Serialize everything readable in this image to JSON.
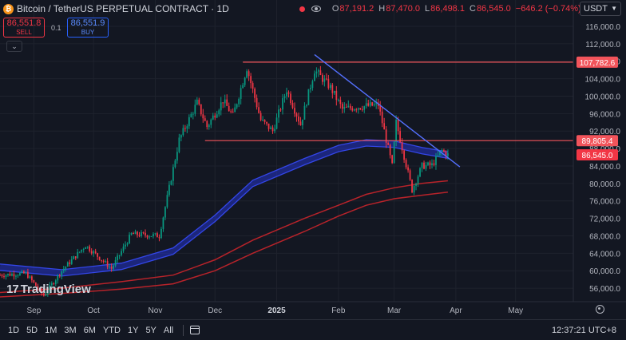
{
  "header": {
    "title": "Bitcoin / TetherUS PERPETUAL CONTRACT · 1D",
    "ohlc": [
      {
        "k": "O",
        "v": "87,191.2"
      },
      {
        "k": "H",
        "v": "87,470.0"
      },
      {
        "k": "L",
        "v": "86,498.1"
      },
      {
        "k": "C",
        "v": "86,545.0"
      },
      {
        "k": "",
        "v": "−646.2 (−0.74%)"
      }
    ]
  },
  "trade": {
    "sell_price": "86,551.8",
    "sell_label": "SELL",
    "spread": "0.1",
    "buy_price": "86,551.9",
    "buy_label": "BUY"
  },
  "currency": "USDT",
  "watermark": "TradingView",
  "timeframes": [
    "1D",
    "5D",
    "1M",
    "3M",
    "6M",
    "YTD",
    "1Y",
    "5Y",
    "All"
  ],
  "clock": "12:37:21 UTC+8",
  "colors": {
    "up": "#089981",
    "down": "#f23645",
    "ema_blue": "#2433c7",
    "ema_red": "#b8232a",
    "trendline": "#5470ff",
    "level": "#f2545b",
    "background": "#131722",
    "text": "#b2b5be"
  },
  "chart_data": {
    "type": "candlestick",
    "y_axis": {
      "ticks": [
        56000,
        60000,
        64000,
        68000,
        72000,
        76000,
        80000,
        84000,
        88000,
        92000,
        96000,
        100000,
        104000,
        108000,
        112000,
        116000
      ],
      "tick_labels": [
        "56,000.0",
        "60,000.0",
        "64,000.0",
        "68,000.0",
        "72,000.0",
        "76,000.0",
        "80,000.0",
        "84,000.0",
        "88,000.0",
        "92,000.0",
        "96,000.0",
        "100,000.0",
        "104,000.0",
        "108,000.0",
        "112,000.0",
        "116,000.0"
      ],
      "ylim": [
        54000,
        118000
      ]
    },
    "x_axis": {
      "labels": [
        "Sep",
        "Oct",
        "Nov",
        "Dec",
        "2025",
        "Feb",
        "Mar",
        "Apr",
        "May"
      ],
      "dates": [
        "2024-09-01",
        "2024-10-01",
        "2024-11-01",
        "2024-12-01",
        "2025-01-01",
        "2025-02-01",
        "2025-03-01",
        "2025-04-01",
        "2025-05-01"
      ],
      "xlim": [
        "2024-08-15",
        "2025-05-30"
      ]
    },
    "price_labels": [
      {
        "value": 107782.6,
        "text": "107,782.6",
        "kind": "level"
      },
      {
        "value": 89805.4,
        "text": "89,805.4",
        "kind": "level"
      },
      {
        "value": 86545.0,
        "text": "86,545.0",
        "kind": "last"
      }
    ],
    "horizontal_levels": [
      {
        "value": 107782.6,
        "start": "2024-12-15",
        "end": "2025-05-30"
      },
      {
        "value": 89805.4,
        "start": "2024-11-26",
        "end": "2025-05-30"
      }
    ],
    "trendline": {
      "start": {
        "date": "2025-01-20",
        "value": 109500
      },
      "end": {
        "date": "2025-04-03",
        "value": 83800
      }
    },
    "anchors": [
      {
        "date": "2024-08-15",
        "value": 59000
      },
      {
        "date": "2024-08-28",
        "value": 59400
      },
      {
        "date": "2024-09-06",
        "value": 54300
      },
      {
        "date": "2024-09-15",
        "value": 60000
      },
      {
        "date": "2024-09-27",
        "value": 65800
      },
      {
        "date": "2024-10-10",
        "value": 60500
      },
      {
        "date": "2024-10-20",
        "value": 68400
      },
      {
        "date": "2024-11-03",
        "value": 68000
      },
      {
        "date": "2024-11-13",
        "value": 90000
      },
      {
        "date": "2024-11-22",
        "value": 98500
      },
      {
        "date": "2024-11-27",
        "value": 93000
      },
      {
        "date": "2024-12-05",
        "value": 99000
      },
      {
        "date": "2024-12-10",
        "value": 95500
      },
      {
        "date": "2024-12-17",
        "value": 106500
      },
      {
        "date": "2024-12-24",
        "value": 94500
      },
      {
        "date": "2024-12-30",
        "value": 92000
      },
      {
        "date": "2025-01-06",
        "value": 101500
      },
      {
        "date": "2025-01-13",
        "value": 93500
      },
      {
        "date": "2025-01-20",
        "value": 106000
      },
      {
        "date": "2025-01-28",
        "value": 102000
      },
      {
        "date": "2025-02-03",
        "value": 97000
      },
      {
        "date": "2025-02-10",
        "value": 97500
      },
      {
        "date": "2025-02-21",
        "value": 98000
      },
      {
        "date": "2025-02-28",
        "value": 84000
      },
      {
        "date": "2025-03-02",
        "value": 94000
      },
      {
        "date": "2025-03-10",
        "value": 78500
      },
      {
        "date": "2025-03-15",
        "value": 84000
      },
      {
        "date": "2025-03-20",
        "value": 84200
      },
      {
        "date": "2025-03-25",
        "value": 87500
      },
      {
        "date": "2025-03-28",
        "value": 86545
      }
    ],
    "ema_blue": [
      {
        "date": "2024-08-15",
        "value": 60800
      },
      {
        "date": "2024-09-15",
        "value": 59500
      },
      {
        "date": "2024-10-15",
        "value": 61000
      },
      {
        "date": "2024-11-10",
        "value": 64500
      },
      {
        "date": "2024-12-01",
        "value": 72000
      },
      {
        "date": "2024-12-20",
        "value": 80000
      },
      {
        "date": "2025-01-15",
        "value": 85000
      },
      {
        "date": "2025-02-01",
        "value": 88000
      },
      {
        "date": "2025-02-15",
        "value": 89300
      },
      {
        "date": "2025-03-01",
        "value": 89000
      },
      {
        "date": "2025-03-15",
        "value": 87500
      },
      {
        "date": "2025-03-28",
        "value": 86500
      }
    ],
    "ema_red": [
      {
        "date": "2024-08-15",
        "value": 55000
      },
      {
        "date": "2024-09-15",
        "value": 56000
      },
      {
        "date": "2024-10-15",
        "value": 57500
      },
      {
        "date": "2024-11-10",
        "value": 59000
      },
      {
        "date": "2024-12-01",
        "value": 62500
      },
      {
        "date": "2024-12-20",
        "value": 67000
      },
      {
        "date": "2025-01-15",
        "value": 72000
      },
      {
        "date": "2025-02-01",
        "value": 75000
      },
      {
        "date": "2025-02-15",
        "value": 77500
      },
      {
        "date": "2025-03-01",
        "value": 79000
      },
      {
        "date": "2025-03-15",
        "value": 80000
      },
      {
        "date": "2025-03-28",
        "value": 80600
      }
    ],
    "ema_red2": [
      {
        "date": "2024-08-15",
        "value": 54000
      },
      {
        "date": "2024-09-15",
        "value": 54800
      },
      {
        "date": "2024-10-15",
        "value": 55800
      },
      {
        "date": "2024-11-10",
        "value": 57000
      },
      {
        "date": "2024-12-01",
        "value": 60000
      },
      {
        "date": "2024-12-20",
        "value": 64000
      },
      {
        "date": "2025-01-15",
        "value": 69000
      },
      {
        "date": "2025-02-01",
        "value": 72500
      },
      {
        "date": "2025-02-15",
        "value": 75000
      },
      {
        "date": "2025-03-01",
        "value": 76500
      },
      {
        "date": "2025-03-15",
        "value": 77300
      },
      {
        "date": "2025-03-28",
        "value": 78000
      }
    ]
  }
}
